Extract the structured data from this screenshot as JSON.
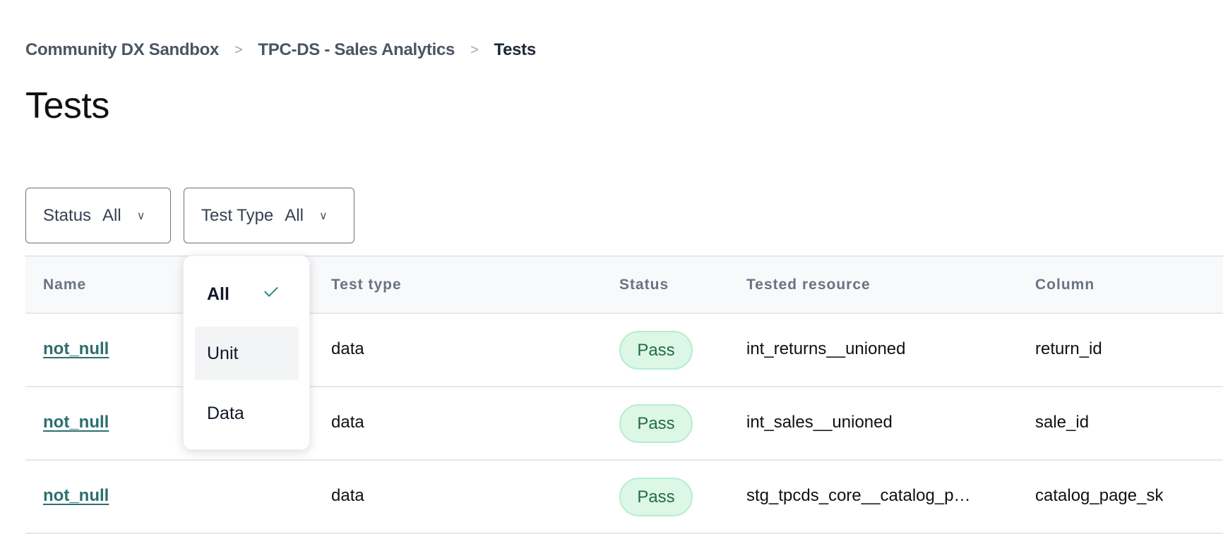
{
  "breadcrumb": [
    "Community DX Sandbox",
    "TPC-DS - Sales Analytics",
    "Tests"
  ],
  "breadcrumb_separator": ">",
  "page_title": "Tests",
  "filters": {
    "status": {
      "label": "Status",
      "value": "All"
    },
    "test_type": {
      "label": "Test Type",
      "value": "All"
    }
  },
  "dropdown": {
    "options": [
      {
        "label": "All",
        "selected": true
      },
      {
        "label": "Unit",
        "hovered": true
      },
      {
        "label": "Data"
      }
    ]
  },
  "table": {
    "columns": [
      "Name",
      "Test type",
      "Status",
      "Tested resource",
      "Column"
    ],
    "rows": [
      {
        "name": "not_null",
        "type": "data",
        "status": "Pass",
        "resource": "int_returns__unioned",
        "column": "return_id"
      },
      {
        "name": "not_null",
        "type": "data",
        "status": "Pass",
        "resource": "int_sales__unioned",
        "column": "sale_id"
      },
      {
        "name": "not_null",
        "type": "data",
        "status": "Pass",
        "resource": "stg_tpcds_core__catalog_p…",
        "column": "catalog_page_sk"
      }
    ]
  },
  "colors": {
    "link": "#2d6e6e",
    "pass_bg": "#dcf7e6",
    "pass_text": "#236b47",
    "check": "#2d8a8a"
  }
}
